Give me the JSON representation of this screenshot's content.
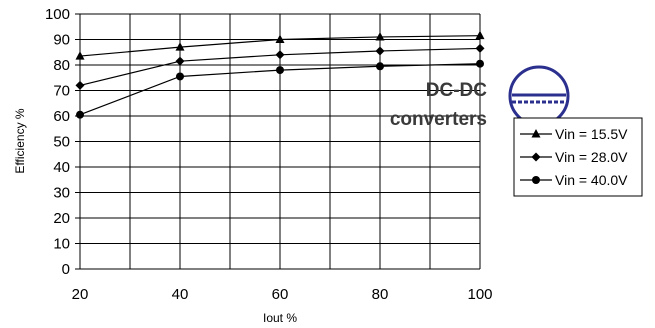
{
  "chart_data": {
    "type": "line",
    "xlabel": "Iout %",
    "ylabel": "Efficiency %",
    "x": [
      20,
      40,
      60,
      80,
      100
    ],
    "xlim": [
      20,
      100
    ],
    "ylim": [
      0,
      100
    ],
    "x_ticks": [
      20,
      40,
      60,
      80,
      100
    ],
    "y_ticks": [
      0,
      10,
      20,
      30,
      40,
      50,
      60,
      70,
      80,
      90,
      100
    ],
    "grid": true,
    "legend_position": "right",
    "series": [
      {
        "name": "Vin = 15.5V",
        "marker": "triangle",
        "values": [
          83.5,
          87,
          90,
          91,
          91.5
        ]
      },
      {
        "name": "Vin = 28.0V",
        "marker": "diamond",
        "values": [
          72,
          81.5,
          84,
          85.5,
          86.5
        ]
      },
      {
        "name": "Vin = 40.0V",
        "marker": "circle",
        "values": [
          60.5,
          75.5,
          78,
          79.5,
          80.5
        ]
      }
    ]
  },
  "overlay": {
    "line1": "DC-DC",
    "line2": "converters",
    "badge_icon": "dc-symbol-icon",
    "badge_color": "#2b2f8e"
  }
}
